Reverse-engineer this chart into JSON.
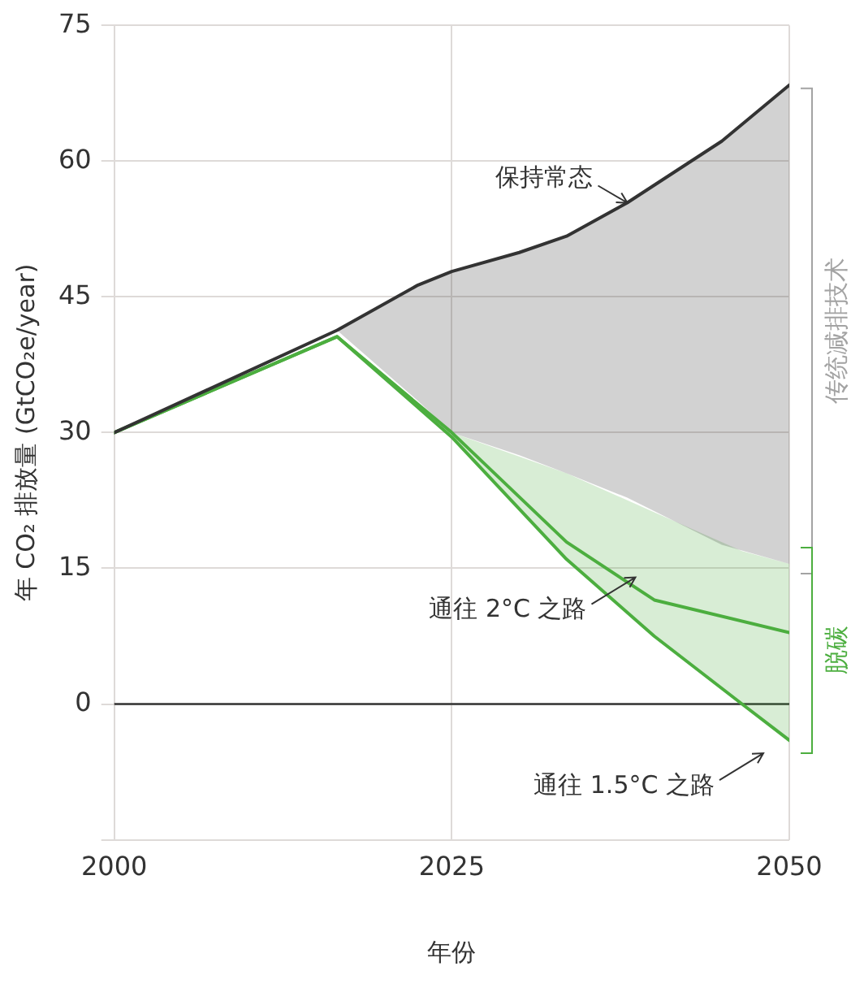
{
  "chart_data": {
    "type": "line",
    "xlabel": "年份",
    "ylabel": "年 CO₂ 排放量 (GtCO₂e/year)",
    "xlim": [
      2000,
      2050
    ],
    "xticks": [
      2000,
      2025,
      2050
    ],
    "ylim": [
      -15,
      75
    ],
    "yticks": [
      {
        "value": -15,
        "label": null
      },
      0,
      15,
      30,
      45,
      60,
      75
    ],
    "grid": true,
    "legend": false,
    "ref_lines": [
      {
        "axis": "y",
        "value": 0,
        "color": "#333333"
      }
    ],
    "series": [
      {
        "color": "#333333",
        "x": [
          2000,
          2016.5,
          2022.5,
          2025,
          2030,
          2033.5,
          2038,
          2045,
          2050
        ],
        "values": [
          30,
          41.3,
          46.3,
          47.8,
          49.9,
          51.7,
          55.4,
          62.2,
          68.4
        ],
        "lower": [
          null,
          41.3,
          33.5,
          30,
          27.5,
          25.5,
          22.8,
          17.6,
          15.5
        ],
        "upper": [
          null,
          41.3,
          46.3,
          47.8,
          49.9,
          51.7,
          55.4,
          62.2,
          68.4
        ]
      },
      {
        "color": "#4cae3f",
        "x": [
          2000,
          2016.5,
          2025,
          2033.5,
          2040,
          2050
        ],
        "values": [
          30,
          40.6,
          30,
          17.9,
          11.5,
          7.9
        ]
      },
      {
        "color": "#4cae3f",
        "x": [
          2000,
          2016.5,
          2025,
          2033.5,
          2040,
          2046.5,
          2050
        ],
        "values": [
          30,
          40.6,
          29.5,
          16,
          7.5,
          0,
          -4
        ],
        "lower": [
          null,
          null,
          29.5,
          16,
          7.5,
          0,
          -4
        ],
        "upper": [
          null,
          null,
          30,
          25.5,
          21.2,
          16.9,
          15.5
        ]
      }
    ],
    "annotations": [
      {
        "text": "保持常态",
        "x": 2038,
        "y": 55.4
      },
      {
        "text": "通往 2°C 之路",
        "x": 2038.6,
        "y": 14
      },
      "通往 1.5°C 之路",
      "传统减排技术",
      "脱碳"
    ]
  }
}
